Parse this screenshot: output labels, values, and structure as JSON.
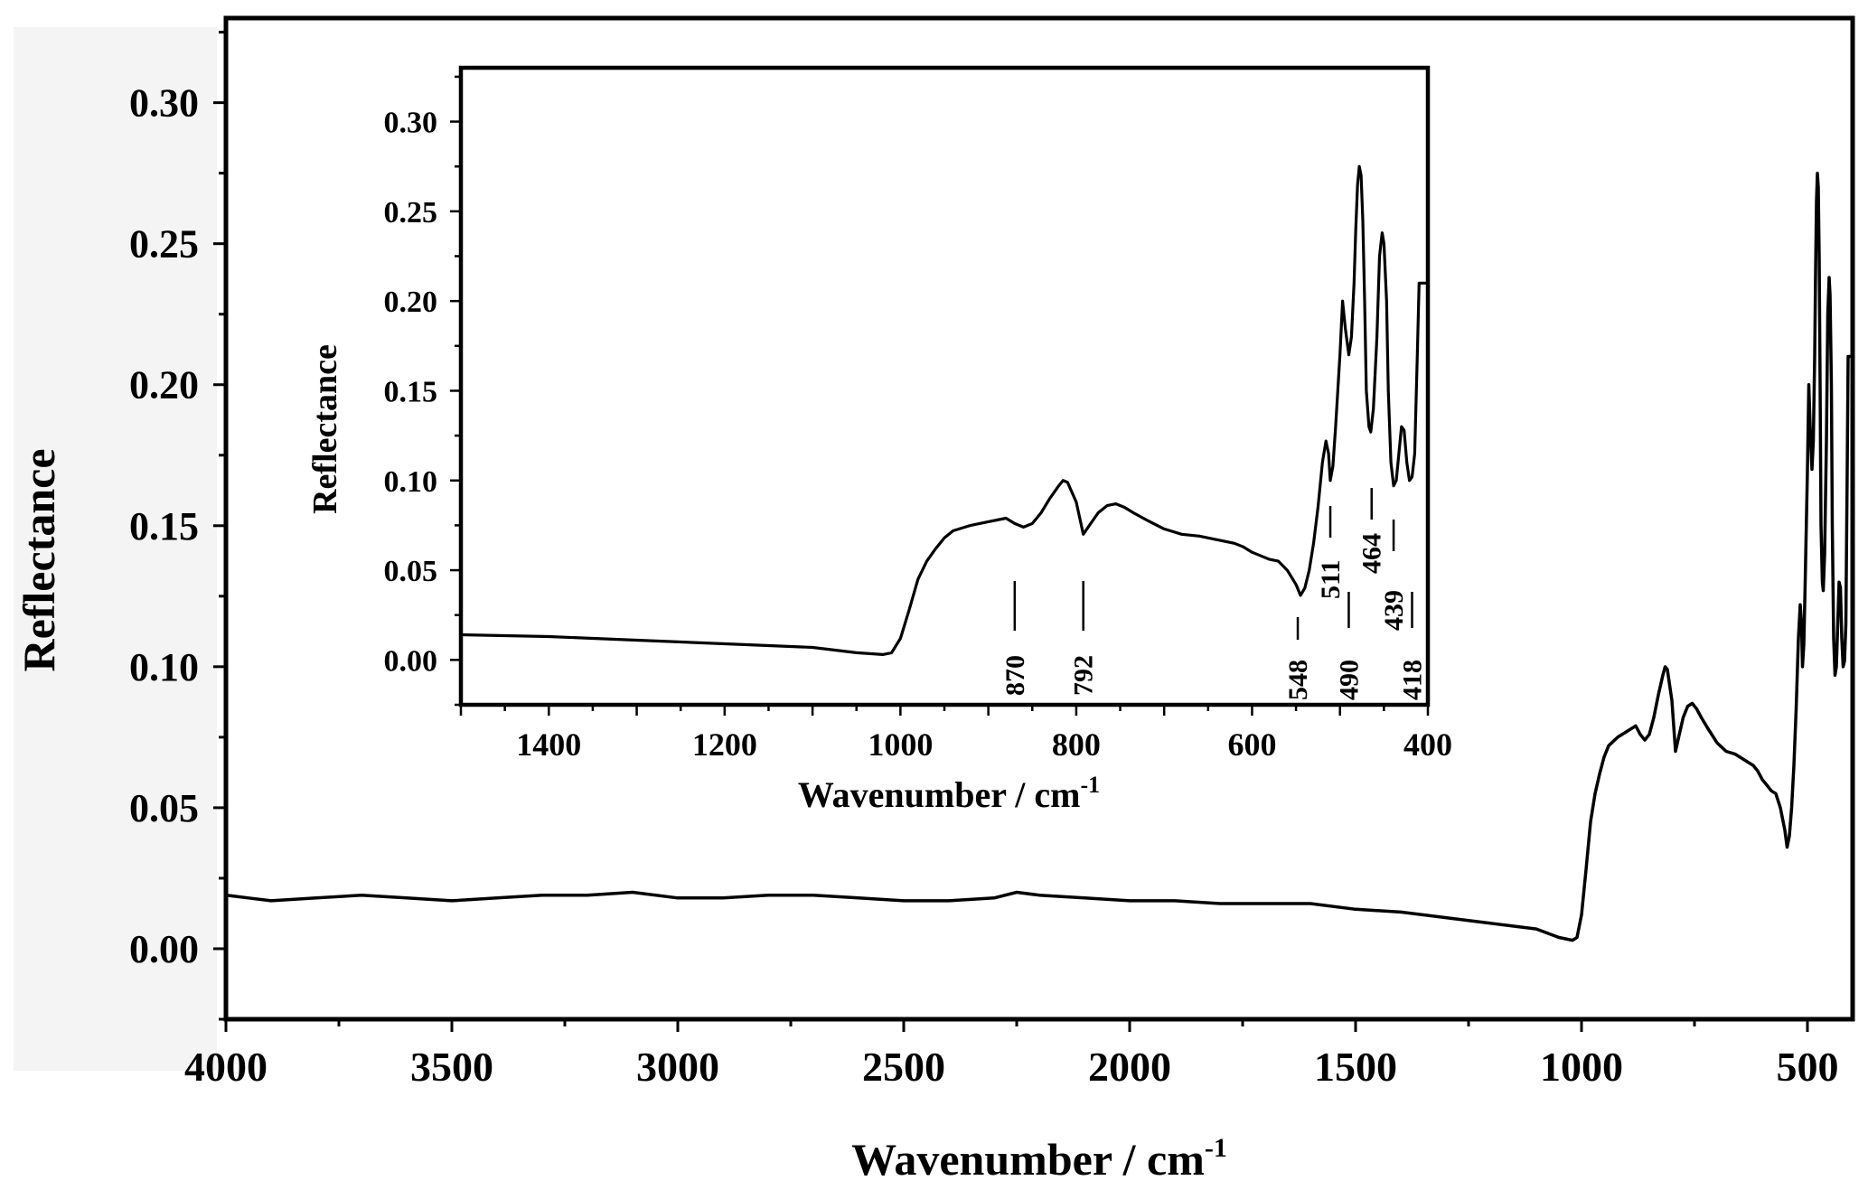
{
  "chart_data": [
    {
      "id": "main",
      "type": "line",
      "title": "",
      "xlabel": "Wavenumber / cm",
      "xlabel_sup": "-1",
      "ylabel": "Reflectance",
      "xlim": [
        4000,
        400
      ],
      "ylim": [
        -0.025,
        0.33
      ],
      "x_reversed": true,
      "grid": false,
      "x_ticks": [
        4000,
        3500,
        3000,
        2500,
        2000,
        1500,
        1000,
        500
      ],
      "x_tick_labels": [
        "4000",
        "3500",
        "3000",
        "2500",
        "2000",
        "1500",
        "1000",
        "500"
      ],
      "y_ticks": [
        0.0,
        0.05,
        0.1,
        0.15,
        0.2,
        0.25,
        0.3
      ],
      "y_tick_labels": [
        "0.00",
        "0.05",
        "0.10",
        "0.15",
        "0.20",
        "0.25",
        "0.30"
      ],
      "series": [
        {
          "x": [
            4000,
            3950,
            3900,
            3800,
            3700,
            3600,
            3500,
            3400,
            3300,
            3200,
            3100,
            3000,
            2900,
            2800,
            2700,
            2600,
            2500,
            2400,
            2300,
            2250,
            2200,
            2100,
            2000,
            1900,
            1800,
            1700,
            1600,
            1500,
            1400,
            1300,
            1200,
            1150,
            1100,
            1050,
            1020,
            1010,
            1000,
            990,
            980,
            970,
            960,
            950,
            940,
            920,
            900,
            880,
            870,
            860,
            850,
            840,
            830,
            820,
            815,
            810,
            800,
            792,
            785,
            775,
            765,
            755,
            745,
            735,
            720,
            700,
            680,
            660,
            640,
            620,
            610,
            600,
            590,
            580,
            570,
            560,
            550,
            545,
            540,
            535,
            530,
            525,
            520,
            516,
            513,
            511,
            508,
            505,
            500,
            497,
            494,
            490,
            487,
            484,
            482,
            480,
            478,
            476,
            474,
            472,
            470,
            467,
            465,
            462,
            458,
            455,
            452,
            450,
            447,
            445,
            442,
            439,
            436,
            433,
            430,
            427,
            424,
            421,
            418,
            415,
            412,
            410,
            405,
            400
          ],
          "y": [
            0.019,
            0.018,
            0.017,
            0.018,
            0.019,
            0.018,
            0.017,
            0.018,
            0.019,
            0.019,
            0.02,
            0.018,
            0.018,
            0.019,
            0.019,
            0.018,
            0.017,
            0.017,
            0.018,
            0.02,
            0.019,
            0.018,
            0.017,
            0.017,
            0.016,
            0.016,
            0.016,
            0.014,
            0.013,
            0.011,
            0.009,
            0.008,
            0.007,
            0.004,
            0.003,
            0.004,
            0.012,
            0.028,
            0.045,
            0.055,
            0.062,
            0.068,
            0.072,
            0.075,
            0.077,
            0.079,
            0.076,
            0.074,
            0.076,
            0.082,
            0.09,
            0.097,
            0.1,
            0.099,
            0.088,
            0.07,
            0.075,
            0.082,
            0.086,
            0.087,
            0.085,
            0.082,
            0.078,
            0.073,
            0.07,
            0.069,
            0.067,
            0.065,
            0.063,
            0.06,
            0.058,
            0.056,
            0.055,
            0.05,
            0.042,
            0.036,
            0.04,
            0.05,
            0.065,
            0.085,
            0.11,
            0.122,
            0.115,
            0.1,
            0.108,
            0.13,
            0.17,
            0.2,
            0.185,
            0.17,
            0.18,
            0.21,
            0.24,
            0.265,
            0.275,
            0.27,
            0.245,
            0.2,
            0.15,
            0.13,
            0.127,
            0.14,
            0.18,
            0.225,
            0.238,
            0.232,
            0.2,
            0.15,
            0.11,
            0.097,
            0.1,
            0.115,
            0.13,
            0.128,
            0.11,
            0.1,
            0.102,
            0.115,
            0.17,
            0.21,
            0.21,
            0.21
          ]
        }
      ]
    },
    {
      "id": "inset",
      "type": "line",
      "title": "",
      "xlabel": "Wavenumber / cm",
      "xlabel_sup": "-1",
      "ylabel": "Reflectance",
      "xlim": [
        1500,
        400
      ],
      "ylim": [
        -0.025,
        0.33
      ],
      "x_reversed": true,
      "grid": false,
      "x_ticks": [
        1400,
        1200,
        1000,
        800,
        600,
        400
      ],
      "x_tick_labels": [
        "1400",
        "1200",
        "1000",
        "800",
        "600",
        "400"
      ],
      "y_ticks": [
        0.0,
        0.05,
        0.1,
        0.15,
        0.2,
        0.25,
        0.3
      ],
      "y_tick_labels": [
        "0.00",
        "0.05",
        "0.10",
        "0.15",
        "0.20",
        "0.25",
        "0.30"
      ],
      "annotations": [
        {
          "label": "870",
          "x": 870
        },
        {
          "label": "792",
          "x": 792
        },
        {
          "label": "548",
          "x": 548
        },
        {
          "label": "511",
          "x": 511
        },
        {
          "label": "490",
          "x": 490
        },
        {
          "label": "464",
          "x": 464
        },
        {
          "label": "439",
          "x": 439
        },
        {
          "label": "418",
          "x": 418
        }
      ]
    }
  ]
}
